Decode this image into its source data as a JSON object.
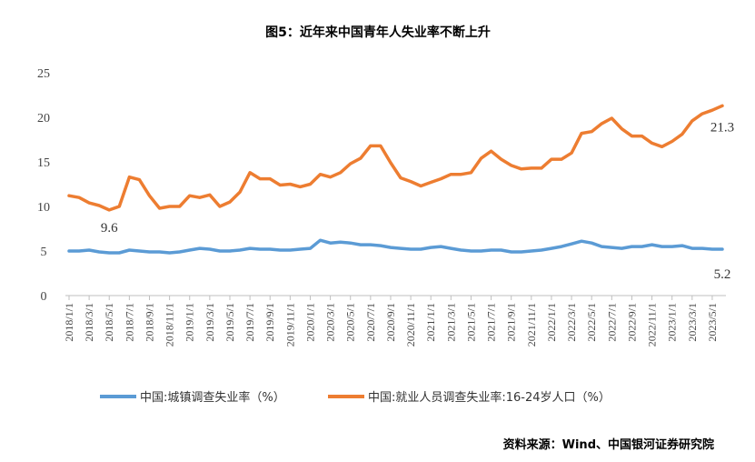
{
  "chart_data": {
    "type": "line",
    "title": "图5：近年来中国青年人失业率不断上升",
    "source": "资料来源：Wind、中国银河证券研究院",
    "ylim": [
      0,
      25
    ],
    "yticks": [
      "0",
      "5",
      "10",
      "15",
      "20",
      "25"
    ],
    "x": [
      "2018/1/1",
      "2018/2/1",
      "2018/3/1",
      "2018/4/1",
      "2018/5/1",
      "2018/6/1",
      "2018/7/1",
      "2018/8/1",
      "2018/9/1",
      "2018/10/1",
      "2018/11/1",
      "2018/12/1",
      "2019/1/1",
      "2019/2/1",
      "2019/3/1",
      "2019/4/1",
      "2019/5/1",
      "2019/6/1",
      "2019/7/1",
      "2019/8/1",
      "2019/9/1",
      "2019/10/1",
      "2019/11/1",
      "2019/12/1",
      "2020/1/1",
      "2020/2/1",
      "2020/3/1",
      "2020/4/1",
      "2020/5/1",
      "2020/6/1",
      "2020/7/1",
      "2020/8/1",
      "2020/9/1",
      "2020/10/1",
      "2020/11/1",
      "2020/12/1",
      "2021/1/1",
      "2021/2/1",
      "2021/3/1",
      "2021/4/1",
      "2021/5/1",
      "2021/6/1",
      "2021/7/1",
      "2021/8/1",
      "2021/9/1",
      "2021/10/1",
      "2021/11/1",
      "2021/12/1",
      "2022/1/1",
      "2022/2/1",
      "2022/3/1",
      "2022/4/1",
      "2022/5/1",
      "2022/6/1",
      "2022/7/1",
      "2022/8/1",
      "2022/9/1",
      "2022/10/1",
      "2022/11/1",
      "2022/12/1",
      "2023/1/1",
      "2023/2/1",
      "2023/3/1",
      "2023/4/1",
      "2023/5/1",
      "2023/6/1"
    ],
    "xtick_labels": [
      "2018/1/1",
      "2018/3/1",
      "2018/5/1",
      "2018/7/1",
      "2018/9/1",
      "2018/11/1",
      "2019/1/1",
      "2019/3/1",
      "2019/5/1",
      "2019/7/1",
      "2019/9/1",
      "2019/11/1",
      "2020/1/1",
      "2020/3/1",
      "2020/5/1",
      "2020/7/1",
      "2020/9/1",
      "2020/11/1",
      "2021/1/1",
      "2021/3/1",
      "2021/5/1",
      "2021/7/1",
      "2021/9/1",
      "2021/11/1",
      "2022/1/1",
      "2022/3/1",
      "2022/5/1",
      "2022/7/1",
      "2022/9/1",
      "2022/11/1",
      "2023/1/1",
      "2023/3/1",
      "2023/5/1"
    ],
    "series": [
      {
        "name": "中国:城镇调查失业率（%）",
        "color": "#5B9BD5",
        "values": [
          5.0,
          5.0,
          5.1,
          4.9,
          4.8,
          4.8,
          5.1,
          5.0,
          4.9,
          4.9,
          4.8,
          4.9,
          5.1,
          5.3,
          5.2,
          5.0,
          5.0,
          5.1,
          5.3,
          5.2,
          5.2,
          5.1,
          5.1,
          5.2,
          5.3,
          6.2,
          5.9,
          6.0,
          5.9,
          5.7,
          5.7,
          5.6,
          5.4,
          5.3,
          5.2,
          5.2,
          5.4,
          5.5,
          5.3,
          5.1,
          5.0,
          5.0,
          5.1,
          5.1,
          4.9,
          4.9,
          5.0,
          5.1,
          5.3,
          5.5,
          5.8,
          6.1,
          5.9,
          5.5,
          5.4,
          5.3,
          5.5,
          5.5,
          5.7,
          5.5,
          5.5,
          5.6,
          5.3,
          5.3,
          5.2,
          5.2
        ]
      },
      {
        "name": "中国:就业人员调查失业率:16-24岁人口（%）",
        "color": "#ED7D31",
        "values": [
          11.2,
          11.0,
          10.4,
          10.1,
          9.6,
          10.0,
          13.3,
          13.0,
          11.2,
          9.8,
          10.0,
          10.0,
          11.2,
          11.0,
          11.3,
          10.0,
          10.5,
          11.6,
          13.8,
          13.1,
          13.1,
          12.4,
          12.5,
          12.2,
          12.5,
          13.6,
          13.3,
          13.8,
          14.8,
          15.4,
          16.8,
          16.8,
          14.9,
          13.2,
          12.8,
          12.3,
          12.7,
          13.1,
          13.6,
          13.6,
          13.8,
          15.4,
          16.2,
          15.3,
          14.6,
          14.2,
          14.3,
          14.3,
          15.3,
          15.3,
          16.0,
          18.2,
          18.4,
          19.3,
          19.9,
          18.7,
          17.9,
          17.9,
          17.1,
          16.7,
          17.3,
          18.1,
          19.6,
          20.4,
          20.8,
          21.3
        ]
      }
    ],
    "annotations": [
      {
        "text": "9.6",
        "series": 1,
        "index": 4
      },
      {
        "text": "21.3",
        "series": 1,
        "index": 65
      },
      {
        "text": "5.2",
        "series": 0,
        "index": 65
      }
    ],
    "legend": "bottom"
  }
}
